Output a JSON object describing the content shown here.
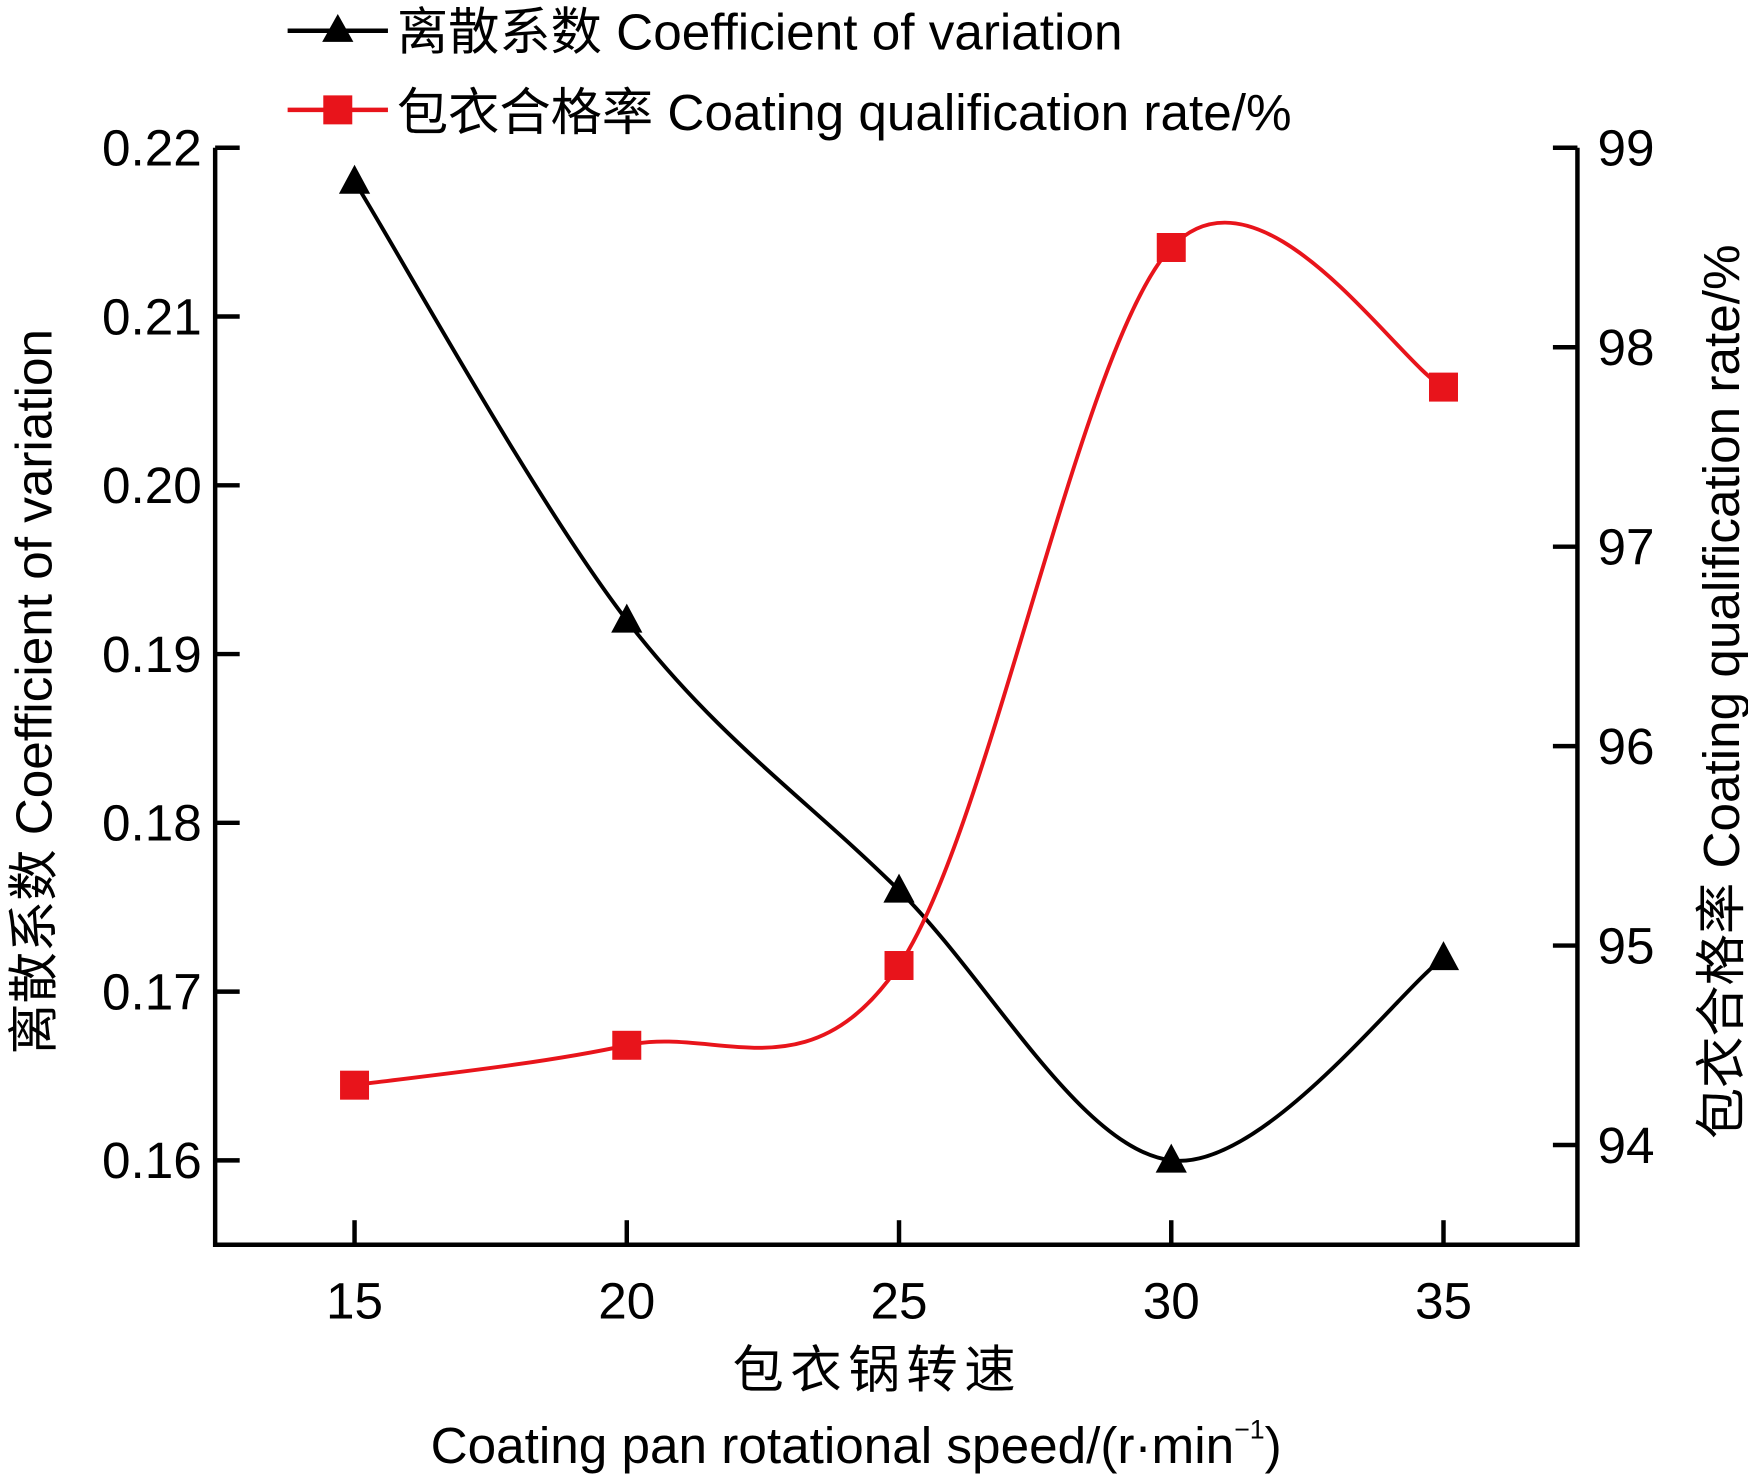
{
  "chart_data": {
    "type": "line",
    "x": [
      15,
      20,
      25,
      30,
      35
    ],
    "xlabel_cn": "包衣锅转速",
    "xlabel_en": "Coating pan rotational speed/(r·min",
    "xlabel_sup": "−1",
    "xlabel_close": ")",
    "ylabel_left": "离散系数 Coefficient of variation",
    "ylabel_right": "包衣合格率 Coating qualification rate/%",
    "xlim": [
      12.44,
      37.46
    ],
    "ylim_left": [
      0.155,
      0.22
    ],
    "ylim_right": [
      93.5,
      99
    ],
    "x_ticks": [
      "15",
      "20",
      "25",
      "30",
      "35"
    ],
    "y_left_ticks": [
      "0.16",
      "0.17",
      "0.18",
      "0.19",
      "0.20",
      "0.21",
      "0.22"
    ],
    "y_right_ticks": [
      "94",
      "95",
      "96",
      "97",
      "98",
      "99"
    ],
    "legend_position": "top",
    "series": [
      {
        "name": "离散系数 Coefficient of variation",
        "axis": "left",
        "marker": "triangle",
        "color": "#000000",
        "values": [
          0.218,
          0.192,
          0.176,
          0.16,
          0.172
        ]
      },
      {
        "name": "包衣合格率 Coating qualification rate/%",
        "axis": "right",
        "marker": "square",
        "color": "#e8141b",
        "values": [
          94.3,
          94.5,
          94.9,
          98.5,
          97.8
        ]
      }
    ]
  }
}
